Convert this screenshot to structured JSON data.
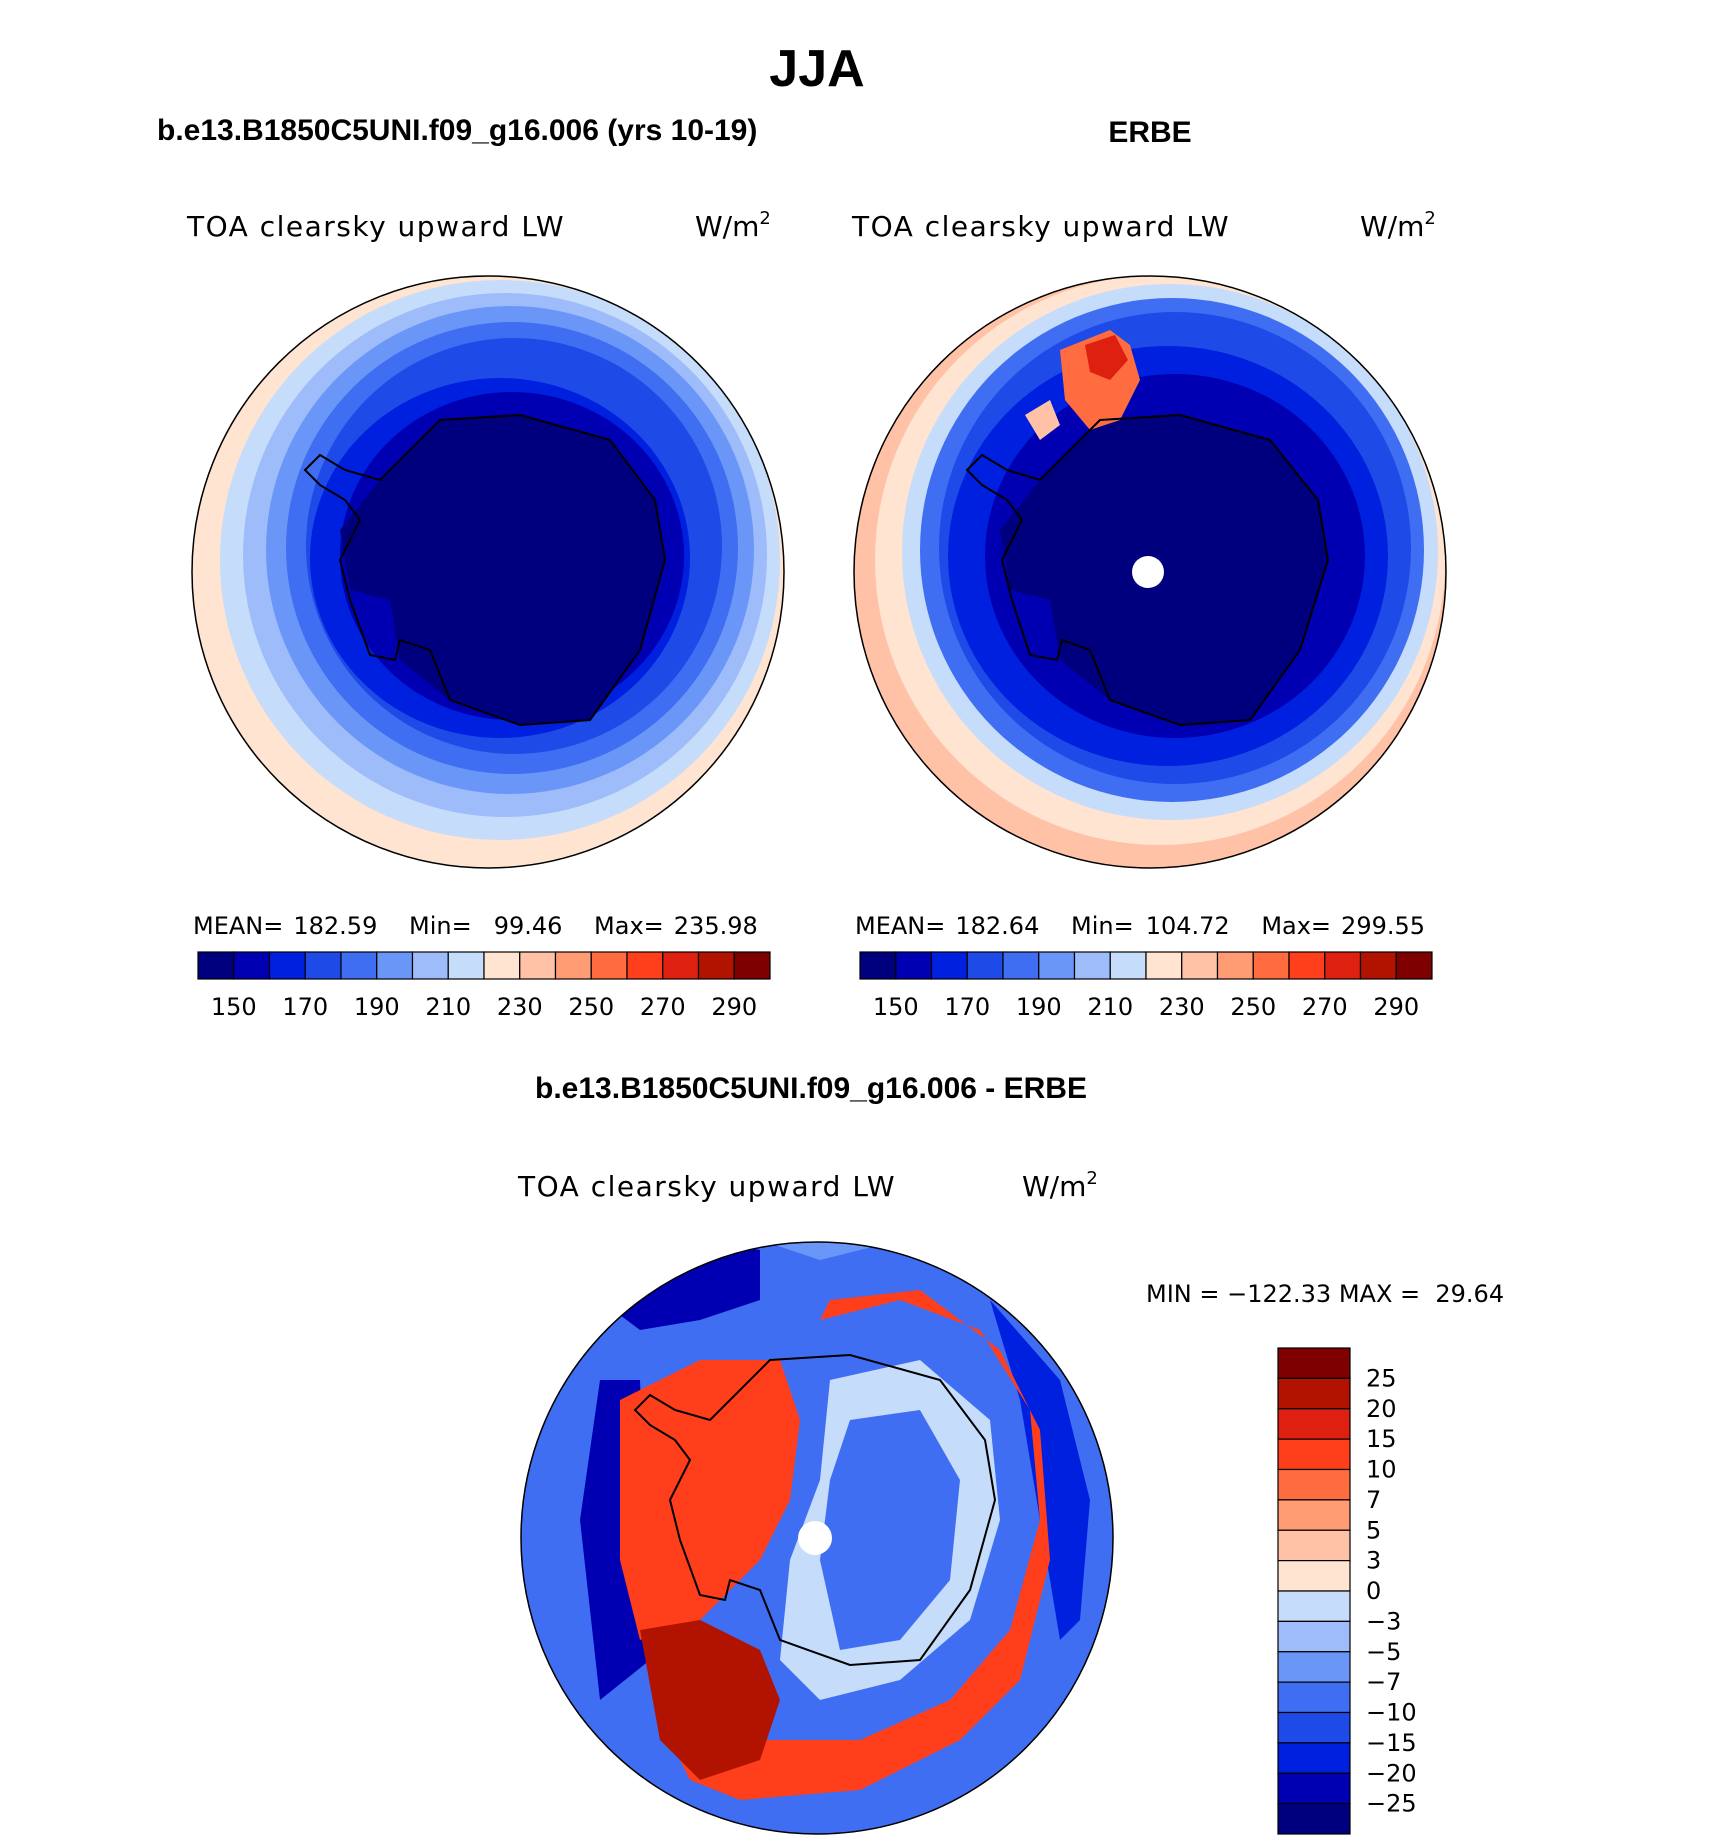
{
  "title": "JJA",
  "colors": [
    "#00007f",
    "#0000b2",
    "#0020e0",
    "#1e4ae8",
    "#3f6ef2",
    "#6a97f7",
    "#9ebcf9",
    "#c6dcfb",
    "#ffe4d2",
    "#ffc2a6",
    "#ff9c74",
    "#ff6c40",
    "#ff3e1c",
    "#de2010",
    "#b21200",
    "#7f0000"
  ],
  "diff_colors": [
    "#00007f",
    "#0000b2",
    "#0020e0",
    "#1e4ae8",
    "#3f6ef2",
    "#6a97f7",
    "#9ebcf9",
    "#c6dcfb",
    "#ffe4d2",
    "#ffc2a6",
    "#ff9c74",
    "#ff6c40",
    "#ff3e1c",
    "#de2010",
    "#b21200",
    "#7f0000"
  ],
  "panels": [
    {
      "case": "b.e13.B1850C5UNI.f09_g16.006 (yrs 10-19)",
      "variable": "TOA clearsky upward LW",
      "units": "W/m",
      "units_sup": "2",
      "stats": {
        "mean_label": "MEAN=",
        "mean": "182.59",
        "min_label": "Min=",
        "min": "99.46",
        "max_label": "Max=",
        "max": "235.98"
      },
      "ticks": [
        "150",
        "170",
        "190",
        "210",
        "230",
        "250",
        "270",
        "290"
      ]
    },
    {
      "case": "ERBE",
      "variable": "TOA clearsky upward LW",
      "units": "W/m",
      "units_sup": "2",
      "stats": {
        "mean_label": "MEAN=",
        "mean": "182.64",
        "min_label": "Min=",
        "min": "104.72",
        "max_label": "Max=",
        "max": "299.55"
      },
      "ticks": [
        "150",
        "170",
        "190",
        "210",
        "230",
        "250",
        "270",
        "290"
      ]
    }
  ],
  "difference": {
    "case": "b.e13.B1850C5UNI.f09_g16.006 - ERBE",
    "variable": "TOA clearsky upward LW",
    "units": "W/m",
    "units_sup": "2",
    "minmax": "MIN = −122.33 MAX =  29.64",
    "ticks": [
      "25",
      "20",
      "15",
      "10",
      "7",
      "5",
      "3",
      "0",
      "−3",
      "−5",
      "−7",
      "−10",
      "−15",
      "−20",
      "−25"
    ]
  }
}
